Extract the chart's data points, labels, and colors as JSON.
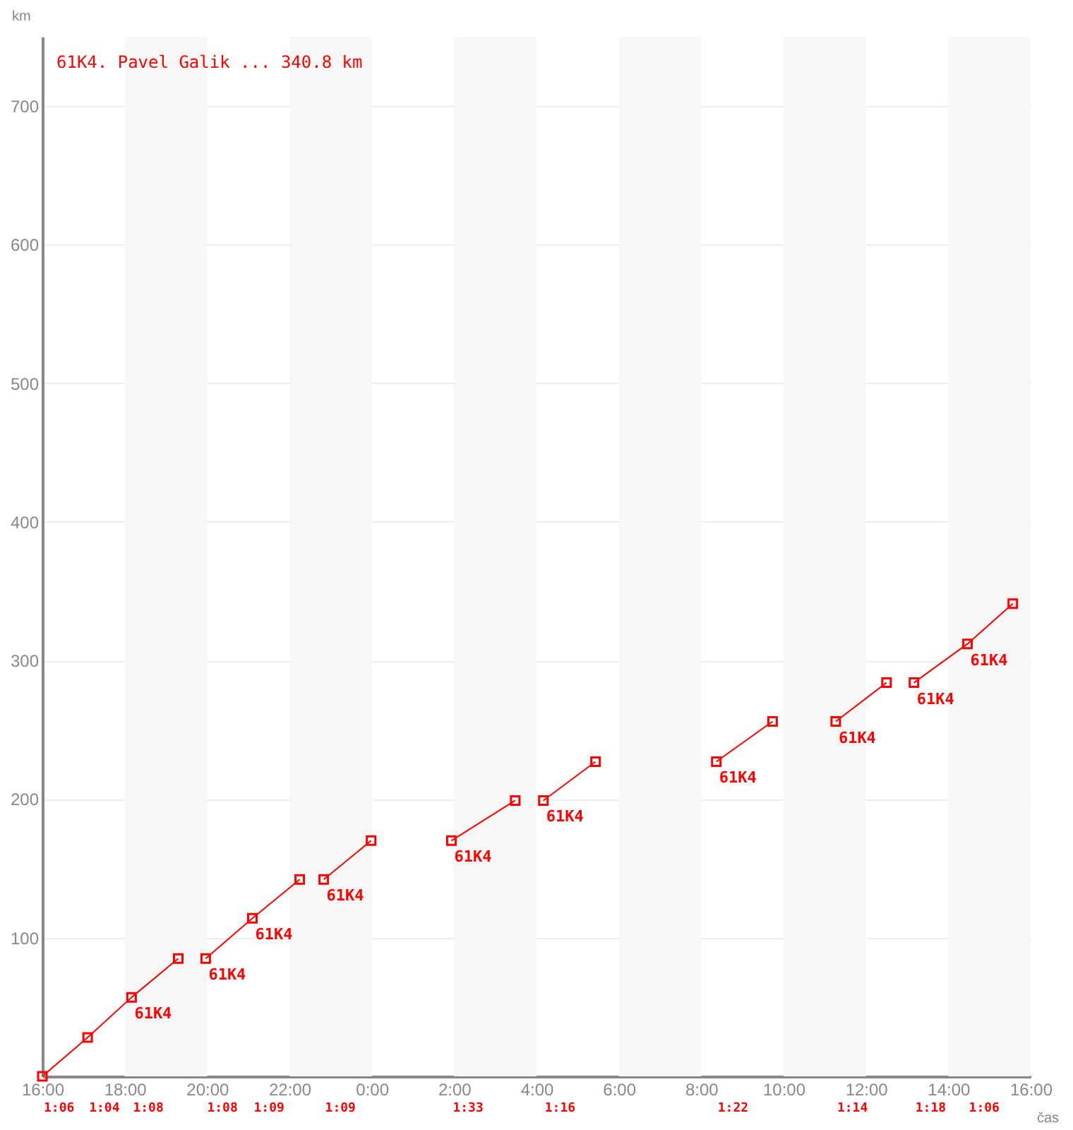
{
  "chart_data": {
    "type": "line",
    "title": "61K4. Pavel Galik ... 340.8 km",
    "xlabel": "čas",
    "ylabel": "km",
    "xlim": [
      "--01-01T16:00",
      "--01-02T16:00"
    ],
    "xticks": [
      {
        "value": "--01-01T16:00",
        "label": "16:00"
      },
      {
        "value": "--01-01T18:00",
        "label": "18:00"
      },
      {
        "value": "--01-01T20:00",
        "label": "20:00"
      },
      {
        "value": "--01-01T22:00",
        "label": "22:00"
      },
      {
        "value": "--01-02T00:00",
        "label": "0:00"
      },
      {
        "value": "--01-02T02:00",
        "label": "2:00"
      },
      {
        "value": "--01-02T04:00",
        "label": "4:00"
      },
      {
        "value": "--01-02T06:00",
        "label": "6:00"
      },
      {
        "value": "--01-02T08:00",
        "label": "8:00"
      },
      {
        "value": "--01-02T10:00",
        "label": "10:00"
      },
      {
        "value": "--01-02T12:00",
        "label": "12:00"
      },
      {
        "value": "--01-02T14:00",
        "label": "14:00"
      },
      {
        "value": "--01-02T16:00",
        "label": "16:00"
      }
    ],
    "ylim": [
      0,
      750
    ],
    "yticks": [
      100,
      200,
      300,
      400,
      500,
      600,
      700
    ],
    "grid": "y",
    "marker": "square",
    "line_style": "solid",
    "series": [
      {
        "color": "#ff0000",
        "x": [
          "--01-01T16:00",
          "--01-01T17:06",
          "--01-01T18:10",
          "--01-01T19:18"
        ],
        "values": [
          0,
          28,
          57,
          85
        ]
      },
      {
        "color": "#ff0000",
        "x": [
          "--01-01T19:58",
          "--01-01T21:06",
          "--01-01T22:15"
        ],
        "values": [
          85,
          114,
          142
        ]
      },
      {
        "color": "#ff0000",
        "x": [
          "--01-01T22:50",
          "--01-01T23:59"
        ],
        "values": [
          142,
          170
        ]
      },
      {
        "color": "#ff0000",
        "x": [
          "--01-02T01:56",
          "--01-02T03:29"
        ],
        "values": [
          170,
          199
        ]
      },
      {
        "color": "#ff0000",
        "x": [
          "--01-02T04:10",
          "--01-02T05:26"
        ],
        "values": [
          199,
          227
        ]
      },
      {
        "color": "#ff0000",
        "x": [
          "--01-02T08:22",
          "--01-02T09:44"
        ],
        "values": [
          227,
          256
        ]
      },
      {
        "color": "#ff0000",
        "x": [
          "--01-02T11:16",
          "--01-02T12:30"
        ],
        "values": [
          256,
          284
        ]
      },
      {
        "color": "#ff0000",
        "x": [
          "--01-02T13:10",
          "--01-02T14:28",
          "--01-02T15:34"
        ],
        "values": [
          284,
          312,
          341
        ]
      }
    ],
    "bands": [
      {
        "axis": "x",
        "from": "--01-01T18:00",
        "to": "--01-01T20:00",
        "color": "#f7f7f7"
      },
      {
        "axis": "x",
        "from": "--01-01T22:00",
        "to": "--01-02T00:00",
        "color": "#f7f7f7"
      },
      {
        "axis": "x",
        "from": "--01-02T02:00",
        "to": "--01-02T04:00",
        "color": "#f7f7f7"
      },
      {
        "axis": "x",
        "from": "--01-02T06:00",
        "to": "--01-02T08:00",
        "color": "#f7f7f7"
      },
      {
        "axis": "x",
        "from": "--01-02T10:00",
        "to": "--01-02T12:00",
        "color": "#f7f7f7"
      },
      {
        "axis": "x",
        "from": "--01-02T14:00",
        "to": "--01-02T16:00",
        "color": "#f7f7f7"
      }
    ],
    "annotations": [
      {
        "text": "61K4",
        "x": "--01-01T18:10",
        "y": 57
      },
      {
        "text": "61K4",
        "x": "--01-01T19:58",
        "y": 85
      },
      {
        "text": "61K4",
        "x": "--01-01T21:06",
        "y": 114
      },
      {
        "text": "61K4",
        "x": "--01-01T22:50",
        "y": 142
      },
      {
        "text": "61K4",
        "x": "--01-02T01:56",
        "y": 170
      },
      {
        "text": "61K4",
        "x": "--01-02T04:10",
        "y": 199
      },
      {
        "text": "61K4",
        "x": "--01-02T08:22",
        "y": 227
      },
      {
        "text": "61K4",
        "x": "--01-02T11:16",
        "y": 256
      },
      {
        "text": "61K4",
        "x": "--01-02T13:10",
        "y": 284
      },
      {
        "text": "61K4",
        "x": "--01-02T14:28",
        "y": 312
      },
      "1:06",
      "1:04",
      "1:08",
      "1:08",
      "1:09",
      "1:09",
      "1:33",
      "1:16",
      "1:22",
      "1:14",
      "1:18",
      "1:06"
    ]
  }
}
